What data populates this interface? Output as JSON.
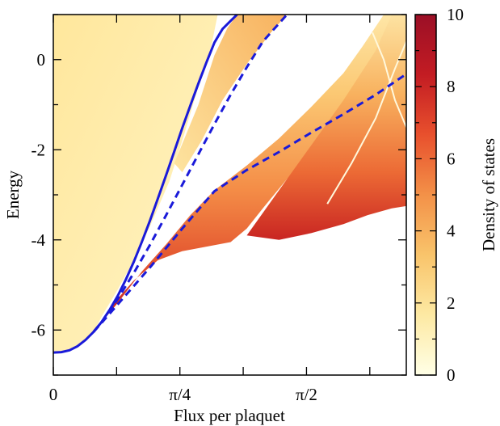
{
  "chart_data": {
    "type": "heatmap",
    "title": "",
    "xlabel": "Flux per plaquet",
    "ylabel": "Energy",
    "xlim": [
      0,
      2.19
    ],
    "ylim": [
      -7,
      1
    ],
    "x_ticks": [
      {
        "value": 0,
        "label": "0"
      },
      {
        "value": 0.7854,
        "label": "π/4"
      },
      {
        "value": 1.5708,
        "label": "π/2"
      }
    ],
    "y_ticks": [
      {
        "value": 0,
        "label": "0"
      },
      {
        "value": -2,
        "label": "-2"
      },
      {
        "value": -4,
        "label": "-4"
      },
      {
        "value": -6,
        "label": "-6"
      }
    ],
    "colorbar": {
      "label": "Density of states",
      "range": [
        0,
        10
      ],
      "ticks": [
        {
          "value": 0,
          "label": "0"
        },
        {
          "value": 2,
          "label": "2"
        },
        {
          "value": 4,
          "label": "4"
        },
        {
          "value": 6,
          "label": "6"
        },
        {
          "value": 8,
          "label": "8"
        },
        {
          "value": 10,
          "label": "10"
        }
      ],
      "colormap": [
        "#ffffe6",
        "#fde9a3",
        "#f9c46b",
        "#f39148",
        "#e8502d",
        "#c31c23",
        "#9b0f26"
      ]
    },
    "series": [
      {
        "style": "solid",
        "color": "#1a1ad9",
        "x": [
          0,
          0.05,
          0.1,
          0.15,
          0.2,
          0.25,
          0.3,
          0.35,
          0.4,
          0.45,
          0.5,
          0.55,
          0.6,
          0.65,
          0.7,
          0.75,
          0.8,
          0.85,
          0.9,
          0.95,
          1.0,
          1.05,
          1.1,
          1.14
        ],
        "y": [
          -6.5,
          -6.49,
          -6.45,
          -6.36,
          -6.22,
          -6.04,
          -5.82,
          -5.55,
          -5.24,
          -4.88,
          -4.48,
          -4.04,
          -3.57,
          -3.07,
          -2.56,
          -2.04,
          -1.52,
          -1.02,
          -0.53,
          -0.06,
          0.38,
          0.68,
          0.86,
          1.0
        ]
      },
      {
        "style": "dashed",
        "color": "#1a1ad9",
        "x": [
          0.25,
          0.3,
          0.4,
          0.5,
          0.6,
          0.7,
          0.8,
          0.9,
          1.0,
          1.1,
          1.2,
          1.3,
          1.45
        ],
        "y": [
          -6.04,
          -5.82,
          -5.31,
          -4.73,
          -4.11,
          -3.45,
          -2.78,
          -2.1,
          -1.43,
          -0.78,
          -0.17,
          0.4,
          1.0
        ]
      },
      {
        "style": "dashed",
        "color": "#1a1ad9",
        "x": [
          0.25,
          0.3,
          0.4,
          0.5,
          0.6,
          0.7,
          0.8,
          0.9,
          1.0,
          1.2,
          1.4,
          1.6,
          1.8,
          2.0,
          2.19
        ],
        "y": [
          -6.04,
          -5.84,
          -5.43,
          -5.02,
          -4.61,
          -4.18,
          -3.75,
          -3.33,
          -2.92,
          -2.45,
          -2.05,
          -1.62,
          -1.21,
          -0.78,
          -0.32
        ]
      }
    ]
  }
}
